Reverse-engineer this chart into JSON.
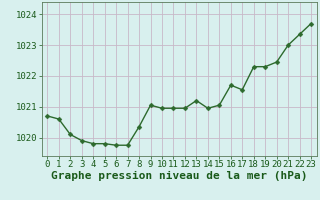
{
  "x": [
    0,
    1,
    2,
    3,
    4,
    5,
    6,
    7,
    8,
    9,
    10,
    11,
    12,
    13,
    14,
    15,
    16,
    17,
    18,
    19,
    20,
    21,
    22,
    23
  ],
  "y": [
    1020.7,
    1020.6,
    1020.1,
    1019.9,
    1019.8,
    1019.8,
    1019.75,
    1019.75,
    1020.35,
    1021.05,
    1020.95,
    1020.95,
    1020.95,
    1021.2,
    1020.95,
    1021.05,
    1021.7,
    1021.55,
    1022.3,
    1022.3,
    1022.45,
    1023.0,
    1023.35,
    1023.7
  ],
  "line_color": "#2d6a2d",
  "marker": "D",
  "marker_size": 2.5,
  "marker_color": "#2d6a2d",
  "bg_color": "#d8f0ee",
  "grid_color": "#c8b8c8",
  "xlabel": "Graphe pression niveau de la mer (hPa)",
  "xlabel_fontsize": 8,
  "xlabel_color": "#1a5a1a",
  "ylabel_ticks": [
    1020,
    1021,
    1022,
    1023,
    1024
  ],
  "xtick_labels": [
    "0",
    "1",
    "2",
    "3",
    "4",
    "5",
    "6",
    "7",
    "8",
    "9",
    "10",
    "11",
    "12",
    "13",
    "14",
    "15",
    "16",
    "17",
    "18",
    "19",
    "20",
    "21",
    "22",
    "23"
  ],
  "ylim": [
    1019.4,
    1024.4
  ],
  "xlim": [
    -0.5,
    23.5
  ],
  "tick_fontsize": 6.5,
  "tick_color": "#1a5a1a",
  "spine_color": "#5a7a5a",
  "line_width": 1.0
}
